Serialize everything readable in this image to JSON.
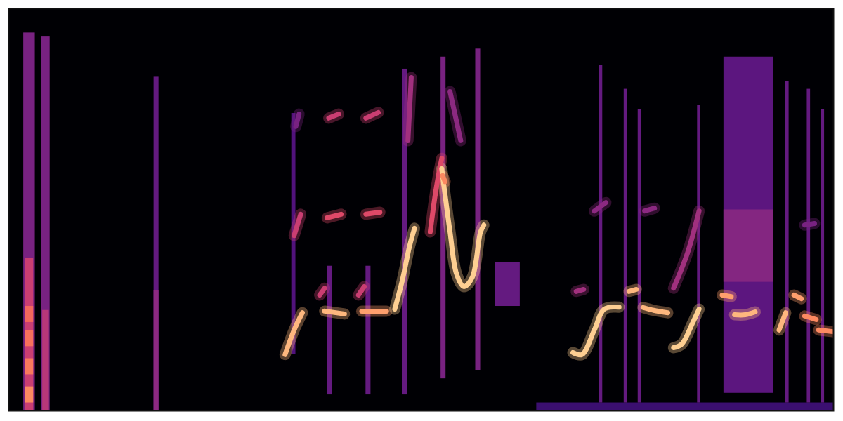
{
  "chart_data": {
    "type": "spectrogram",
    "xlim": [
      0,
      100
    ],
    "ylim": [
      0,
      100
    ],
    "tick_labels": false,
    "intensity_range": [
      0,
      1
    ],
    "clicks": [
      {
        "x0": 1.8,
        "x1": 3.2,
        "y0": 0,
        "y1": 94,
        "intensity": 0.35
      },
      {
        "x0": 2.0,
        "x1": 3.0,
        "y0": 0,
        "y1": 38,
        "intensity": 0.55
      },
      {
        "x0": 2.0,
        "x1": 3.0,
        "y0": 2,
        "y1": 6,
        "intensity": 0.75
      },
      {
        "x0": 2.0,
        "x1": 3.0,
        "y0": 9,
        "y1": 13,
        "intensity": 0.72
      },
      {
        "x0": 2.0,
        "x1": 3.0,
        "y0": 16,
        "y1": 20,
        "intensity": 0.7
      },
      {
        "x0": 2.0,
        "x1": 3.0,
        "y0": 22,
        "y1": 26,
        "intensity": 0.68
      },
      {
        "x0": 4.0,
        "x1": 5.0,
        "y0": 0,
        "y1": 93,
        "intensity": 0.35
      },
      {
        "x0": 4.1,
        "x1": 4.9,
        "y0": 0,
        "y1": 25,
        "intensity": 0.5
      },
      {
        "x0": 17.6,
        "x1": 18.2,
        "y0": 0,
        "y1": 83,
        "intensity": 0.3
      },
      {
        "x0": 17.6,
        "x1": 18.2,
        "y0": 0,
        "y1": 30,
        "intensity": 0.4
      },
      {
        "x0": 34.3,
        "x1": 34.8,
        "y0": 14,
        "y1": 74,
        "intensity": 0.25
      },
      {
        "x0": 38.6,
        "x1": 39.2,
        "y0": 4,
        "y1": 36,
        "intensity": 0.3
      },
      {
        "x0": 43.3,
        "x1": 43.9,
        "y0": 4,
        "y1": 36,
        "intensity": 0.3
      },
      {
        "x0": 47.7,
        "x1": 48.3,
        "y0": 4,
        "y1": 85,
        "intensity": 0.3
      },
      {
        "x0": 52.4,
        "x1": 53.0,
        "y0": 8,
        "y1": 88,
        "intensity": 0.35
      },
      {
        "x0": 56.6,
        "x1": 57.2,
        "y0": 10,
        "y1": 90,
        "intensity": 0.35
      },
      {
        "x0": 64.0,
        "x1": 100,
        "y0": 0,
        "y1": 2,
        "intensity": 0.2
      },
      {
        "x0": 71.6,
        "x1": 72.0,
        "y0": 2,
        "y1": 86,
        "intensity": 0.3
      },
      {
        "x0": 74.6,
        "x1": 75.0,
        "y0": 2,
        "y1": 80,
        "intensity": 0.3
      },
      {
        "x0": 76.3,
        "x1": 76.7,
        "y0": 2,
        "y1": 75,
        "intensity": 0.3
      },
      {
        "x0": 83.5,
        "x1": 83.9,
        "y0": 2,
        "y1": 76,
        "intensity": 0.3
      },
      {
        "x0": 94.2,
        "x1": 94.6,
        "y0": 2,
        "y1": 82,
        "intensity": 0.3
      },
      {
        "x0": 96.8,
        "x1": 97.2,
        "y0": 2,
        "y1": 80,
        "intensity": 0.3
      },
      {
        "x0": 98.5,
        "x1": 98.9,
        "y0": 2,
        "y1": 75,
        "intensity": 0.3
      }
    ],
    "noise": [
      {
        "x0": 86.7,
        "x1": 92.7,
        "y0": 4.4,
        "y1": 88,
        "intensity": 0.28
      },
      {
        "x0": 86.7,
        "x1": 92.7,
        "y0": 32,
        "y1": 50,
        "intensity": 0.38
      },
      {
        "x0": 59.0,
        "x1": 62.0,
        "y0": 26,
        "y1": 37,
        "intensity": 0.3
      }
    ],
    "tones": [
      {
        "points": [
          [
            33.5,
            14.0
          ],
          [
            34.6,
            20.1
          ],
          [
            35.6,
            24.4
          ]
        ],
        "intensity": 0.85
      },
      {
        "points": [
          [
            34.6,
            43.6
          ],
          [
            35.4,
            48.9
          ]
        ],
        "intensity": 0.55
      },
      {
        "points": [
          [
            34.8,
            70.7
          ],
          [
            35.2,
            73.8
          ]
        ],
        "intensity": 0.35
      },
      {
        "points": [
          [
            37.7,
            28.8
          ],
          [
            38.3,
            30.5
          ]
        ],
        "intensity": 0.55
      },
      {
        "points": [
          [
            38.3,
            24.8
          ],
          [
            40.7,
            24.1
          ]
        ],
        "intensity": 0.85
      },
      {
        "points": [
          [
            38.6,
            48.0
          ],
          [
            40.3,
            48.9
          ]
        ],
        "intensity": 0.6
      },
      {
        "points": [
          [
            38.8,
            72.8
          ],
          [
            40.0,
            73.8
          ]
        ],
        "intensity": 0.55
      },
      {
        "points": [
          [
            42.4,
            28.8
          ],
          [
            43.1,
            30.9
          ]
        ],
        "intensity": 0.55
      },
      {
        "points": [
          [
            42.8,
            24.8
          ],
          [
            45.8,
            24.8
          ]
        ],
        "intensity": 0.8
      },
      {
        "points": [
          [
            43.3,
            48.9
          ],
          [
            45.0,
            49.4
          ]
        ],
        "intensity": 0.6
      },
      {
        "points": [
          [
            43.3,
            72.8
          ],
          [
            44.8,
            74.2
          ]
        ],
        "intensity": 0.55
      },
      {
        "points": [
          [
            46.8,
            25.3
          ],
          [
            47.7,
            32.3
          ],
          [
            48.6,
            41.0
          ],
          [
            49.2,
            45.4
          ]
        ],
        "intensity": 0.9
      },
      {
        "points": [
          [
            48.4,
            67.2
          ],
          [
            48.8,
            82.9
          ]
        ],
        "intensity": 0.45
      },
      {
        "points": [
          [
            51.1,
            44.5
          ],
          [
            51.8,
            55.0
          ],
          [
            52.5,
            62.8
          ]
        ],
        "intensity": 0.6
      },
      {
        "points": [
          [
            52.5,
            60.2
          ],
          [
            53.5,
            44.5
          ],
          [
            54.3,
            34.0
          ],
          [
            55.2,
            30.9
          ],
          [
            56.2,
            33.2
          ],
          [
            57.2,
            44.5
          ],
          [
            57.6,
            46.2
          ]
        ],
        "intensity": 0.9
      },
      {
        "points": [
          [
            52.6,
            58.5
          ],
          [
            52.9,
            57.0
          ]
        ],
        "intensity": 0.75
      },
      {
        "points": [
          [
            53.5,
            79.4
          ],
          [
            54.8,
            67.2
          ]
        ],
        "intensity": 0.4
      },
      {
        "points": [
          [
            68.4,
            14.5
          ],
          [
            69.5,
            14.0
          ],
          [
            71.0,
            20.1
          ],
          [
            72.2,
            25.3
          ],
          [
            74.0,
            25.8
          ]
        ],
        "intensity": 0.9
      },
      {
        "points": [
          [
            68.8,
            29.7
          ],
          [
            69.7,
            30.2
          ]
        ],
        "intensity": 0.45
      },
      {
        "points": [
          [
            71.0,
            49.7
          ],
          [
            72.4,
            51.8
          ]
        ],
        "intensity": 0.4
      },
      {
        "points": [
          [
            75.2,
            29.7
          ],
          [
            76.1,
            30.2
          ]
        ],
        "intensity": 0.85
      },
      {
        "points": [
          [
            76.9,
            25.7
          ],
          [
            78.2,
            25.0
          ],
          [
            79.9,
            24.4
          ]
        ],
        "intensity": 0.85
      },
      {
        "points": [
          [
            77.1,
            49.7
          ],
          [
            78.3,
            50.4
          ]
        ],
        "intensity": 0.4
      },
      {
        "points": [
          [
            80.6,
            15.7
          ],
          [
            81.6,
            16.6
          ],
          [
            82.9,
            21.8
          ],
          [
            83.7,
            25.3
          ]
        ],
        "intensity": 0.9
      },
      {
        "points": [
          [
            80.6,
            30.5
          ],
          [
            82.3,
            39.3
          ],
          [
            83.7,
            49.7
          ]
        ],
        "intensity": 0.45
      },
      {
        "points": [
          [
            86.5,
            28.8
          ],
          [
            87.6,
            28.4
          ]
        ],
        "intensity": 0.8
      },
      {
        "points": [
          [
            88.0,
            23.9
          ],
          [
            89.3,
            23.9
          ],
          [
            90.5,
            24.6
          ]
        ],
        "intensity": 0.85
      },
      {
        "points": [
          [
            93.4,
            20.1
          ],
          [
            94.2,
            24.4
          ]
        ],
        "intensity": 0.85
      },
      {
        "points": [
          [
            95.2,
            28.8
          ],
          [
            96.1,
            27.9
          ]
        ],
        "intensity": 0.8
      },
      {
        "points": [
          [
            96.5,
            23.6
          ],
          [
            97.9,
            22.7
          ]
        ],
        "intensity": 0.75
      },
      {
        "points": [
          [
            98.2,
            20.1
          ],
          [
            99.9,
            19.7
          ]
        ],
        "intensity": 0.75
      },
      {
        "points": [
          [
            96.5,
            46.2
          ],
          [
            97.7,
            46.6
          ]
        ],
        "intensity": 0.35
      }
    ]
  }
}
